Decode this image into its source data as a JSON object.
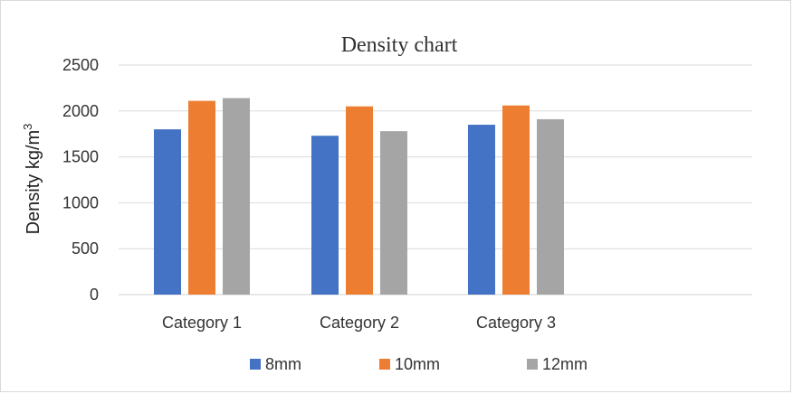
{
  "chart_data": {
    "type": "bar",
    "title": "Density chart",
    "xlabel": "",
    "ylabel": "Density kg/m",
    "ylabel_superscript": "3",
    "categories": [
      "Category 1",
      "Category 2",
      "Category 3"
    ],
    "series": [
      {
        "name": "8mm",
        "color": "#4472c4",
        "values": [
          1800,
          1730,
          1850
        ]
      },
      {
        "name": "10mm",
        "color": "#ed7d31",
        "values": [
          2110,
          2050,
          2060
        ]
      },
      {
        "name": "12mm",
        "color": "#a5a5a5",
        "values": [
          2140,
          1780,
          1910
        ]
      }
    ],
    "ylim": [
      0,
      2500
    ],
    "yticks": [
      "0",
      "500",
      "1000",
      "1500",
      "2000",
      "2500"
    ],
    "ytick_values": [
      0,
      500,
      1000,
      1500,
      2000,
      2500
    ],
    "grid": true,
    "legend_position": "bottom"
  }
}
